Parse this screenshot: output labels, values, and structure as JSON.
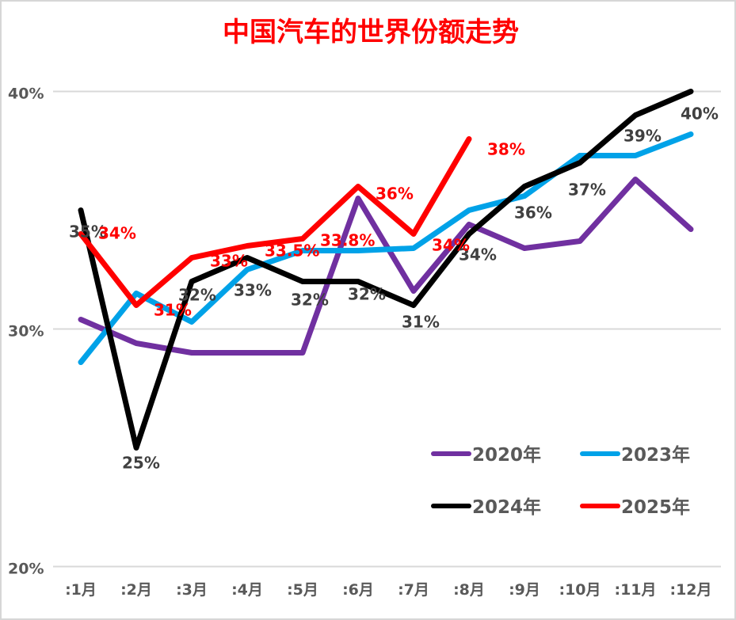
{
  "window": {
    "background": "#ffffff",
    "border_color": "#d6d6d6"
  },
  "title": {
    "text": "中国汽车的世界份额走势",
    "color": "#ff0000"
  },
  "chart_data": {
    "type": "line",
    "title": "中国汽车的世界份额走势",
    "xlabel": "",
    "ylabel": "",
    "categories": [
      ":1月",
      ":2月",
      ":3月",
      ":4月",
      ":5月",
      ":6月",
      ":7月",
      ":8月",
      ":9月",
      ":10月",
      ":11月",
      ":12月"
    ],
    "y_axis": {
      "min": 20,
      "max": 40,
      "ticks": [
        {
          "label": "40%",
          "value": 40
        },
        {
          "label": "30%",
          "value": 30
        },
        {
          "label": "20%",
          "value": 20
        }
      ]
    },
    "grid": "horizontal-only",
    "gridline_color": "#d9d9d9",
    "axis_text_color": "#595959",
    "series": [
      {
        "name": "2020年",
        "color": "#7030a0",
        "values": [
          30.4,
          29.4,
          29.0,
          29.0,
          29.0,
          35.5,
          31.6,
          34.4,
          33.4,
          33.7,
          36.3,
          34.2
        ],
        "point_labels": null,
        "label_color": null,
        "label_offsets": null
      },
      {
        "name": "2023年",
        "color": "#00a2e8",
        "values": [
          28.6,
          31.5,
          30.3,
          32.5,
          33.3,
          33.3,
          33.4,
          35.0,
          35.6,
          37.3,
          37.3,
          38.2
        ],
        "point_labels": null,
        "label_color": null,
        "label_offsets": null
      },
      {
        "name": "2024年",
        "color": "#000000",
        "values": [
          35,
          25,
          32,
          33,
          32,
          32,
          31,
          34,
          36,
          37,
          39,
          40
        ],
        "point_labels": [
          "35%",
          "25%",
          "32%",
          "33%",
          "32%",
          "32%",
          "31%",
          "34%",
          "36%",
          "37%",
          "39%",
          "40%"
        ],
        "label_color": "#404040",
        "label_offsets": [
          [
            -15,
            34
          ],
          [
            -18,
            26
          ],
          [
            -17,
            24
          ],
          [
            -17,
            48
          ],
          [
            -15,
            30
          ],
          [
            -13,
            23
          ],
          [
            -15,
            28
          ],
          [
            -13,
            33
          ],
          [
            -13,
            40
          ],
          [
            -15,
            41
          ],
          [
            -15,
            33
          ],
          [
            -13,
            35
          ]
        ]
      },
      {
        "name": "2025年",
        "color": "#ff0000",
        "values": [
          34,
          31,
          33,
          33.5,
          33.8,
          36,
          34,
          38
        ],
        "point_labels": [
          "34%",
          "31%",
          "33%",
          "33.5%",
          "33.8%",
          "36%",
          "34%",
          "38%"
        ],
        "label_color": "#ff0000",
        "label_offsets": [
          [
            22,
            6
          ],
          [
            22,
            13
          ],
          [
            23,
            11
          ],
          [
            22,
            13
          ],
          [
            22,
            9
          ],
          [
            22,
            16
          ],
          [
            23,
            21
          ],
          [
            23,
            20
          ]
        ]
      }
    ],
    "legend": {
      "position": "inside-bottom-right",
      "entries": [
        "2020年",
        "2023年",
        "2024年",
        "2025年"
      ]
    }
  }
}
